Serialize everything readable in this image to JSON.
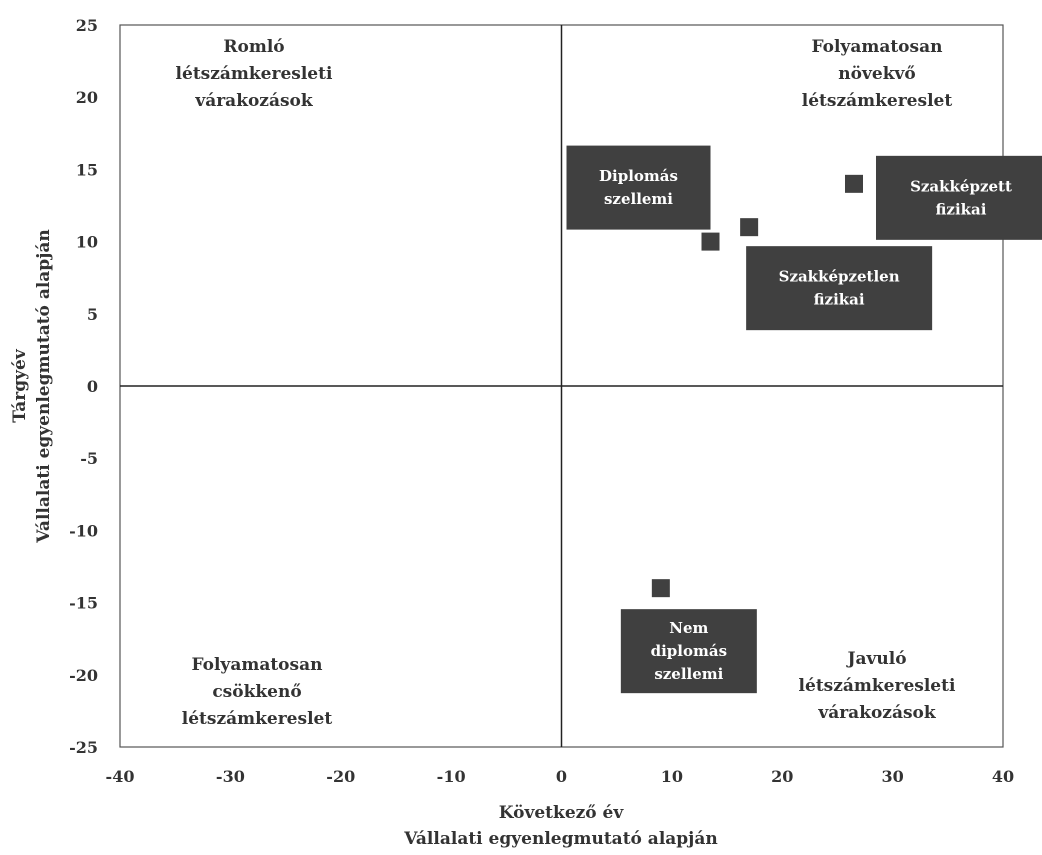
{
  "chart_data": {
    "type": "scatter",
    "title": "",
    "xlabel": [
      "Következő év",
      "Vállalati egyenlegmutató alapján"
    ],
    "ylabel": [
      "Tárgyév",
      "Vállalati egyenlegmutató alapján"
    ],
    "xlim": [
      -40,
      40
    ],
    "ylim": [
      -25,
      25
    ],
    "xticks": [
      -40,
      -30,
      -20,
      -10,
      0,
      10,
      20,
      30,
      40
    ],
    "yticks": [
      25,
      20,
      15,
      10,
      5,
      0,
      -5,
      -10,
      -15,
      -20,
      -25
    ],
    "grid": false,
    "legend": "none",
    "point_color": "#404040",
    "points": [
      {
        "label": [
          "Diplomás",
          "szellemi"
        ],
        "x": 13.5,
        "y": 10
      },
      {
        "label": [
          "Szakképzetlen",
          "fizikai"
        ],
        "x": 17,
        "y": 11
      },
      {
        "label": [
          "Szakképzett",
          "fizikai"
        ],
        "x": 26.5,
        "y": 14
      },
      {
        "label": [
          "Nem",
          "diplomás",
          "szellemi"
        ],
        "x": 9,
        "y": -14
      }
    ],
    "quadrant_labels": [
      {
        "position": "top-left",
        "lines": [
          "Romló",
          "létszámkeresleti",
          "várakozások"
        ]
      },
      {
        "position": "top-right",
        "lines": [
          "Folyamatosan",
          "növekvő",
          "létszámkereslet"
        ]
      },
      {
        "position": "bottom-left",
        "lines": [
          "Folyamatosan",
          "csökkenő",
          "létszámkereslet"
        ]
      },
      {
        "position": "bottom-right",
        "lines": [
          "Javuló",
          "létszámkeresleti",
          "várakozások"
        ]
      }
    ]
  }
}
